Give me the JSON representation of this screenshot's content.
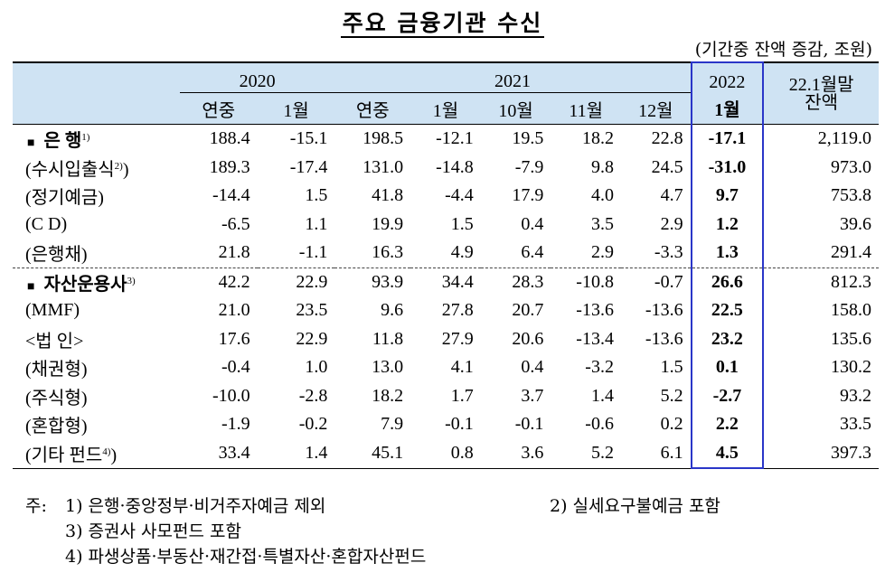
{
  "title": "주요 금융기관 수신",
  "unit": "(기간중 잔액 증감, 조원)",
  "header": {
    "years": [
      "2020",
      "2021",
      "2022"
    ],
    "balance_line1": "22.1월말",
    "balance_line2": "잔액",
    "cols": [
      "연중",
      "1월",
      "연중",
      "1월",
      "10월",
      "11월",
      "12월",
      "1월"
    ]
  },
  "rows": [
    {
      "label": "■ 은  행",
      "sup": "1)",
      "values": [
        "188.4",
        "-15.1",
        "198.5",
        "-12.1",
        "19.5",
        "18.2",
        "22.8",
        "-17.1",
        "2,119.0"
      ]
    },
    {
      "label": "(수시입출식",
      "sup": "2)",
      "suffix": ")",
      "values": [
        "189.3",
        "-17.4",
        "131.0",
        "-14.8",
        "-7.9",
        "9.8",
        "24.5",
        "-31.0",
        "973.0"
      ]
    },
    {
      "label": "(정기예금)",
      "values": [
        "-14.4",
        "1.5",
        "41.8",
        "-4.4",
        "17.9",
        "4.0",
        "4.7",
        "9.7",
        "753.8"
      ]
    },
    {
      "label": "(C  D)",
      "values": [
        "-6.5",
        "1.1",
        "19.9",
        "1.5",
        "0.4",
        "3.5",
        "2.9",
        "1.2",
        "39.6"
      ]
    },
    {
      "label": "(은행채)",
      "values": [
        "21.8",
        "-1.1",
        "16.3",
        "4.9",
        "6.4",
        "2.9",
        "-3.3",
        "1.3",
        "291.4"
      ]
    },
    {
      "label": "■ 자산운용사",
      "sup": "3)",
      "values": [
        "42.2",
        "22.9",
        "93.9",
        "34.4",
        "28.3",
        "-10.8",
        "-0.7",
        "26.6",
        "812.3"
      ]
    },
    {
      "label": "(MMF)",
      "values": [
        "21.0",
        "23.5",
        "9.6",
        "27.8",
        "20.7",
        "-13.6",
        "-13.6",
        "22.5",
        "158.0"
      ]
    },
    {
      "label": "<법  인>",
      "values": [
        "17.6",
        "22.9",
        "11.8",
        "27.9",
        "20.6",
        "-13.4",
        "-13.6",
        "23.2",
        "135.6"
      ]
    },
    {
      "label": "(채권형)",
      "values": [
        "-0.4",
        "1.0",
        "13.0",
        "4.1",
        "0.4",
        "-3.2",
        "1.5",
        "0.1",
        "130.2"
      ]
    },
    {
      "label": "(주식형)",
      "values": [
        "-10.0",
        "-2.8",
        "18.2",
        "1.7",
        "3.7",
        "1.4",
        "5.2",
        "-2.7",
        "93.2"
      ]
    },
    {
      "label": "(혼합형)",
      "values": [
        "-1.9",
        "-0.2",
        "7.9",
        "-0.1",
        "-0.1",
        "-0.6",
        "0.2",
        "2.2",
        "33.5"
      ]
    },
    {
      "label": "(기타 펀드",
      "sup": "4)",
      "suffix": ")",
      "values": [
        "33.4",
        "1.4",
        "45.1",
        "0.8",
        "3.6",
        "5.2",
        "6.1",
        "4.5",
        "397.3"
      ]
    }
  ],
  "notes": {
    "prefix": "주:",
    "n1": "1) 은행·중앙정부·비거주자예금 제외",
    "n2": "2) 실세요구불예금 포함",
    "n3": "3) 증권사 사모펀드 포함",
    "n4": "4) 파생상품·부동산·재간접·특별자산·혼합자산펀드"
  },
  "colors": {
    "header_bg": "#cfe3f3",
    "highlight_border": "#2a36c8"
  }
}
